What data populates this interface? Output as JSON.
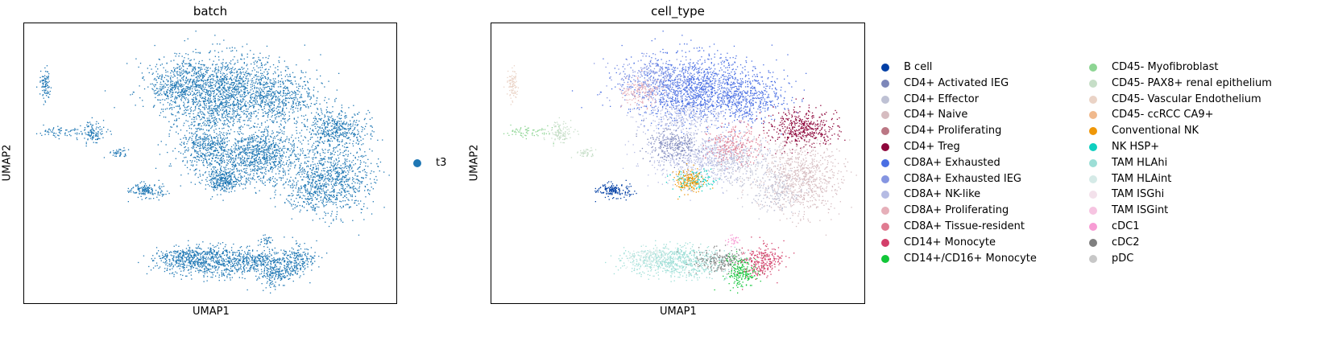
{
  "chart_data": [
    {
      "type": "scatter",
      "title": "batch",
      "xlabel": "UMAP1",
      "ylabel": "UMAP2",
      "legend_position": "right",
      "series": [
        {
          "name": "t3",
          "color": "#1f77b4"
        }
      ]
    },
    {
      "type": "scatter",
      "title": "cell_type",
      "xlabel": "UMAP1",
      "ylabel": "UMAP2",
      "legend_position": "right",
      "series": [
        {
          "name": "B cell",
          "color": "#023fa5"
        },
        {
          "name": "CD4+ Activated IEG",
          "color": "#7d87b9"
        },
        {
          "name": "CD4+ Effector",
          "color": "#bec1d4"
        },
        {
          "name": "CD4+ Naive",
          "color": "#d6bcc0"
        },
        {
          "name": "CD4+ Proliferating",
          "color": "#bb7784"
        },
        {
          "name": "CD4+ Treg",
          "color": "#8e063b"
        },
        {
          "name": "CD8A+ Exhausted",
          "color": "#4a6fe3"
        },
        {
          "name": "CD8A+ Exhausted IEG",
          "color": "#8595e1"
        },
        {
          "name": "CD8A+ NK-like",
          "color": "#b5bbe3"
        },
        {
          "name": "CD8A+ Proliferating",
          "color": "#e6afb9"
        },
        {
          "name": "CD8A+ Tissue-resident",
          "color": "#e07b91"
        },
        {
          "name": "CD14+ Monocyte",
          "color": "#d33f6a"
        },
        {
          "name": "CD14+/CD16+ Monocyte",
          "color": "#11c638"
        },
        {
          "name": "CD45- Myofibroblast",
          "color": "#8dd593"
        },
        {
          "name": "CD45- PAX8+ renal epithelium",
          "color": "#c6dec7"
        },
        {
          "name": "CD45- Vascular Endothelium",
          "color": "#ead3c6"
        },
        {
          "name": "CD45- ccRCC CA9+",
          "color": "#f0b98d"
        },
        {
          "name": "Conventional NK",
          "color": "#ef9708"
        },
        {
          "name": "NK HSP+",
          "color": "#0fcfc0"
        },
        {
          "name": "TAM HLAhi",
          "color": "#9cded6"
        },
        {
          "name": "TAM HLAint",
          "color": "#d5eae7"
        },
        {
          "name": "TAM ISGhi",
          "color": "#f3e1eb"
        },
        {
          "name": "TAM ISGint",
          "color": "#f6c4e1"
        },
        {
          "name": "cDC1",
          "color": "#f79cd4"
        },
        {
          "name": "cDC2",
          "color": "#7f7f7f"
        },
        {
          "name": "pDC",
          "color": "#c7c7c7"
        }
      ]
    }
  ]
}
